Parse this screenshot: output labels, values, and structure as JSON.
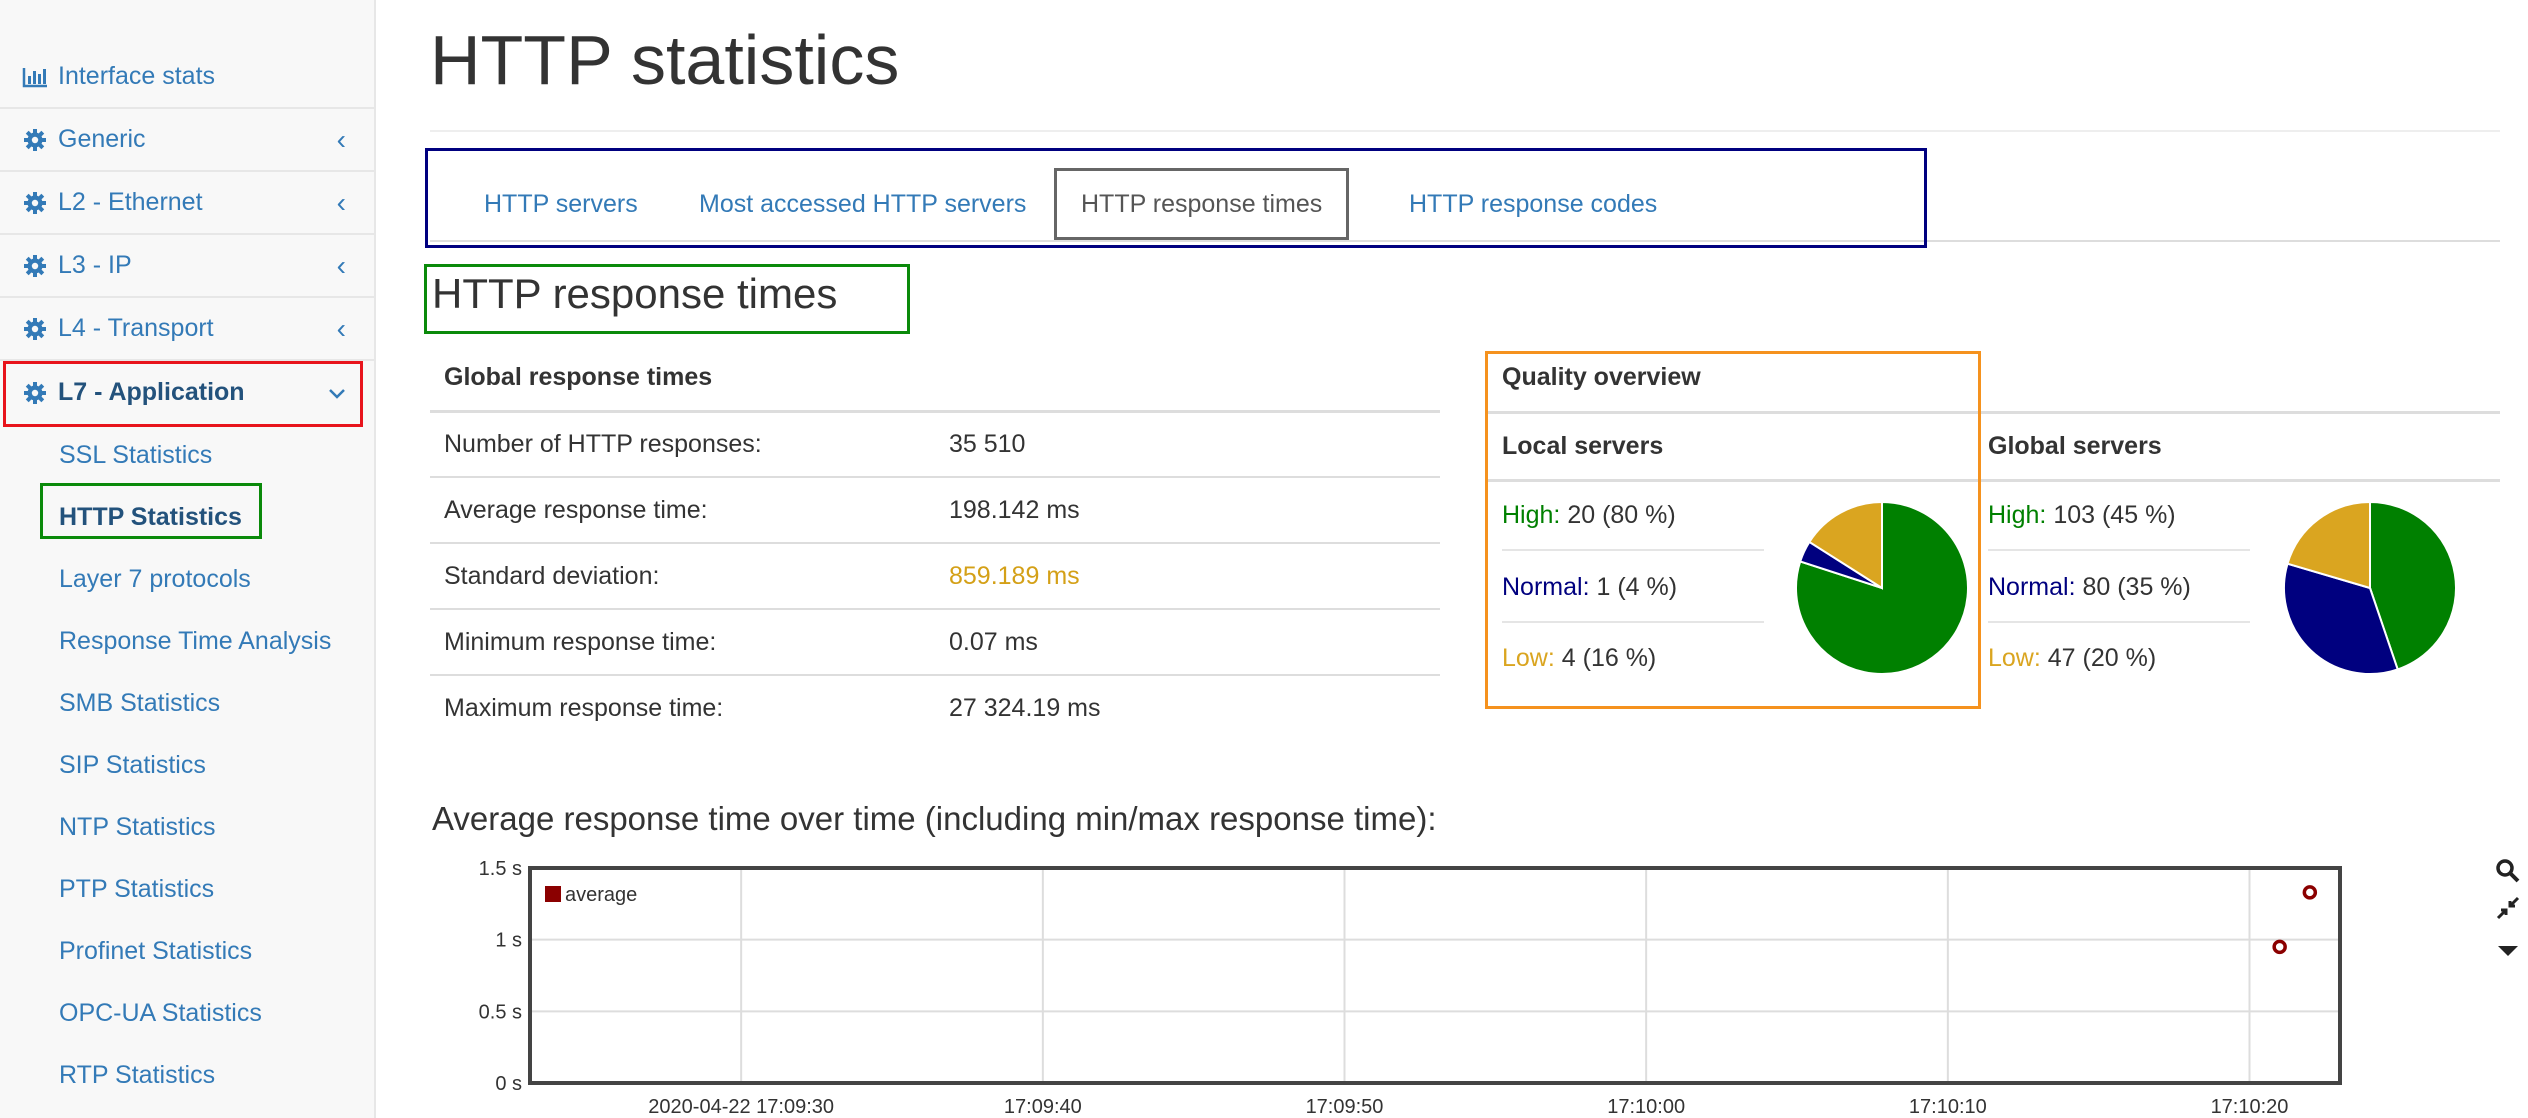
{
  "sidebar": {
    "items": [
      {
        "label": "Interface stats",
        "icon": "bar-chart-icon",
        "has_chevron": false
      },
      {
        "label": "Generic",
        "icon": "gear-icon",
        "has_chevron": true
      },
      {
        "label": "L2 - Ethernet",
        "icon": "gear-icon",
        "has_chevron": true
      },
      {
        "label": "L3 - IP",
        "icon": "gear-icon",
        "has_chevron": true
      },
      {
        "label": "L4 - Transport",
        "icon": "gear-icon",
        "has_chevron": true
      },
      {
        "label": "L7 - Application",
        "icon": "gear-icon",
        "has_chevron": true,
        "expanded": true
      }
    ],
    "sub_items": [
      "SSL Statistics",
      "HTTP Statistics",
      "Layer 7 protocols",
      "Response Time Analysis",
      "SMB Statistics",
      "SIP Statistics",
      "NTP Statistics",
      "PTP Statistics",
      "Profinet Statistics",
      "OPC-UA Statistics",
      "RTP Statistics"
    ],
    "current_sub_item": "HTTP Statistics",
    "chevron_collapsed": "‹",
    "chevron_expanded": "⌄"
  },
  "page": {
    "title": "HTTP statistics"
  },
  "tabs": [
    {
      "label": "HTTP servers",
      "active": false
    },
    {
      "label": "Most accessed HTTP servers",
      "active": false
    },
    {
      "label": "HTTP response times",
      "active": true
    },
    {
      "label": "HTTP response codes",
      "active": false
    }
  ],
  "section": {
    "title": "HTTP response times"
  },
  "global_table": {
    "header": "Global response times",
    "rows": [
      {
        "label": "Number of HTTP responses:",
        "value": "35 510",
        "warn": false
      },
      {
        "label": "Average response time:",
        "value": "198.142 ms",
        "warn": false
      },
      {
        "label": "Standard deviation:",
        "value": "859.189 ms",
        "warn": true
      },
      {
        "label": "Minimum response time:",
        "value": "0.07 ms",
        "warn": false
      },
      {
        "label": "Maximum response time:",
        "value": "27 324.19 ms",
        "warn": false
      }
    ]
  },
  "quality": {
    "header": "Quality overview",
    "local": {
      "title": "Local servers",
      "rows": [
        {
          "label": "High:",
          "value": "20 (80 %)",
          "count": 20
        },
        {
          "label": "Normal:",
          "value": "1 (4 %)",
          "count": 1
        },
        {
          "label": "Low:",
          "value": "4 (16 %)",
          "count": 4
        }
      ]
    },
    "global": {
      "title": "Global servers",
      "rows": [
        {
          "label": "High:",
          "value": "103 (45 %)",
          "count": 103
        },
        {
          "label": "Normal:",
          "value": "80 (35 %)",
          "count": 80
        },
        {
          "label": "Low:",
          "value": "47 (20 %)",
          "count": 47
        }
      ]
    },
    "colors": {
      "high": "#008000",
      "normal": "#00007f",
      "low": "#daa520"
    }
  },
  "chart_title": "Average response time over time (including min/max response time):",
  "chart_data": {
    "type": "scatter",
    "title": "Average response time over time (including min/max response time):",
    "xlabel": "",
    "ylabel": "",
    "x_ticks": [
      "2020-04-22 17:09:30",
      "17:09:40",
      "17:09:50",
      "17:10:00",
      "17:10:10",
      "17:10:20"
    ],
    "y_ticks": [
      "0 s",
      "0.5 s",
      "1 s",
      "1.5 s"
    ],
    "ylim": [
      0,
      1.5
    ],
    "xlim": [
      "2020-04-22 17:09:23",
      "2020-04-22 17:10:23"
    ],
    "grid": true,
    "legend_position": "top-left",
    "series": [
      {
        "name": "average",
        "color": "#8b0000",
        "points": [
          {
            "x": "2020-04-22 17:10:21",
            "y": 0.95
          },
          {
            "x": "2020-04-22 17:10:22",
            "y": 1.33
          }
        ]
      }
    ]
  },
  "chart_tools": [
    "search-icon",
    "compress-icon",
    "caret-down-icon"
  ]
}
